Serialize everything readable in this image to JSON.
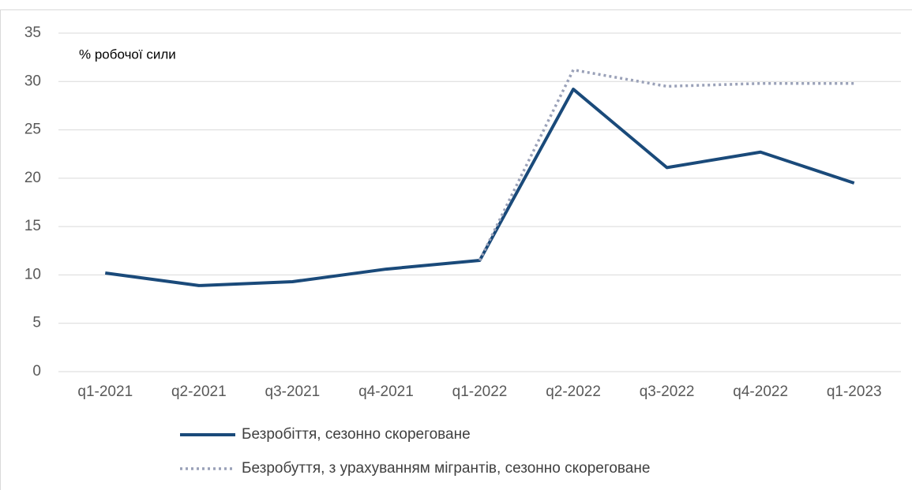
{
  "chart_data": {
    "type": "line",
    "annotation": "% робочої сили",
    "categories": [
      "q1-2021",
      "q2-2021",
      "q3-2021",
      "q4-2021",
      "q1-2022",
      "q2-2022",
      "q3-2022",
      "q4-2022",
      "q1-2023"
    ],
    "series": [
      {
        "name": "Безробіття, сезонно скореговане",
        "color": "#1a4a7a",
        "style": "solid",
        "values": [
          10.2,
          8.9,
          9.3,
          10.6,
          11.5,
          29.2,
          21.1,
          22.7,
          19.5
        ]
      },
      {
        "name": "Безробуття, з урахуванням мігрантів, сезонно скореговане",
        "color": "#9aa1b8",
        "style": "dotted",
        "values": [
          null,
          null,
          null,
          null,
          11.5,
          31.2,
          29.5,
          29.8,
          29.8
        ]
      }
    ],
    "ylim": [
      0,
      35
    ],
    "yticks": [
      0,
      5,
      10,
      15,
      20,
      25,
      30,
      35
    ],
    "grid": true,
    "legend": "bottom"
  }
}
